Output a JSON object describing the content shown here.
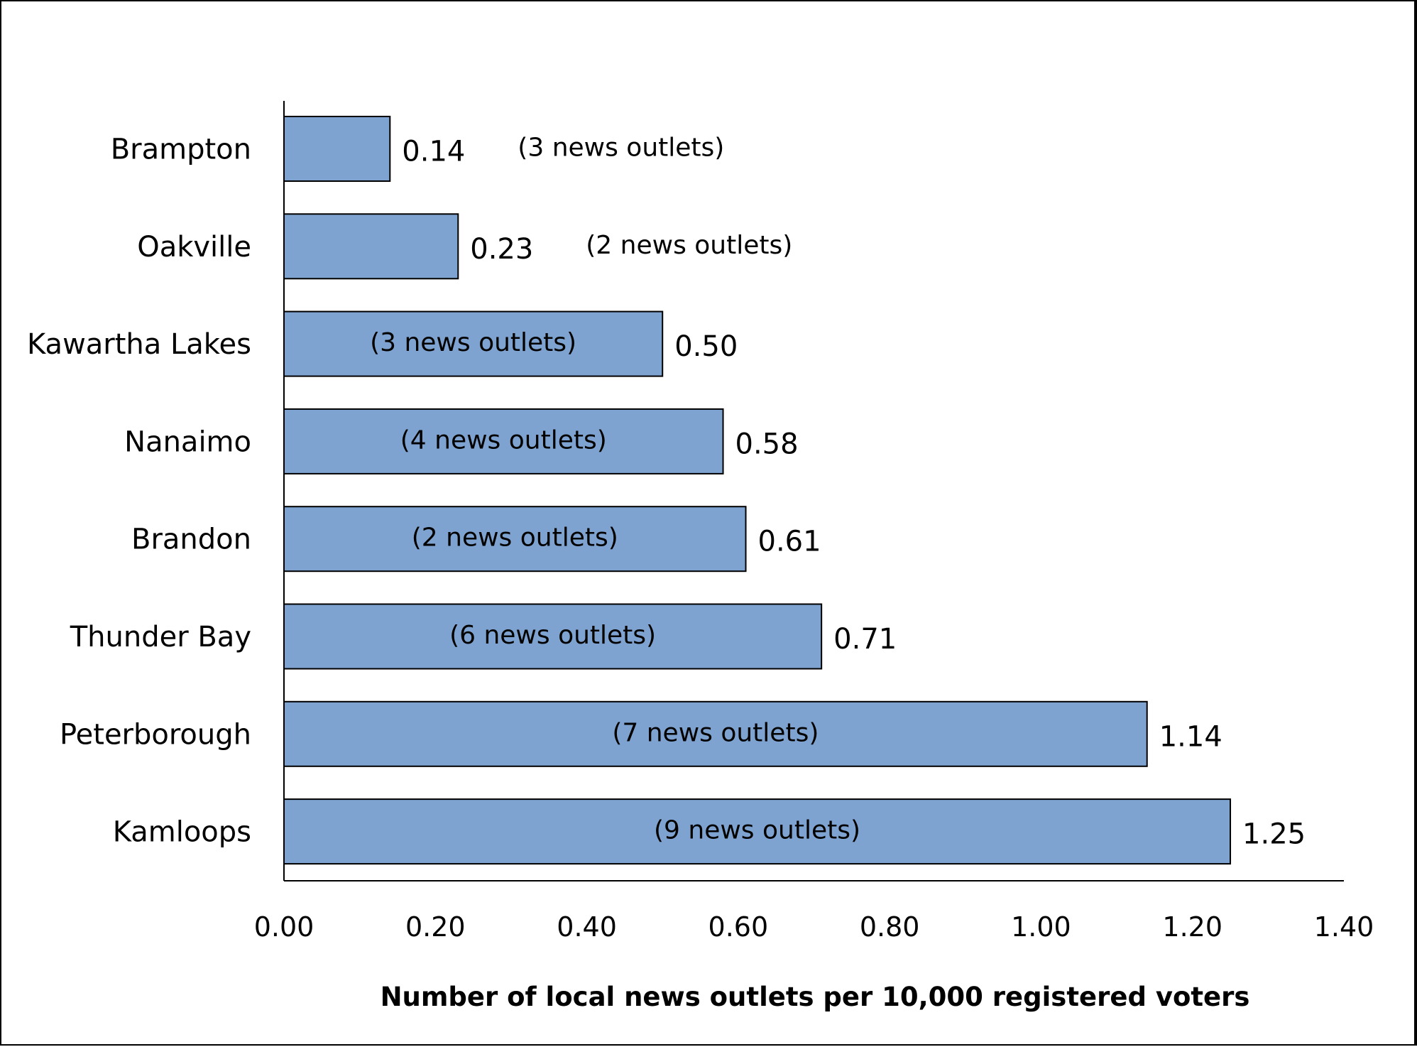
{
  "chart_data": {
    "type": "bar",
    "orientation": "horizontal",
    "title": "",
    "xlabel": "Number of local news outlets per 10,000 registered voters",
    "ylabel": "",
    "xlim": [
      0,
      1.4
    ],
    "xticks": [
      "0.00",
      "0.20",
      "0.40",
      "0.60",
      "0.80",
      "1.00",
      "1.20",
      "1.40"
    ],
    "grid": false,
    "legend": "none",
    "bar_color": "#7EA3D0",
    "bar_edge_color": "#000000",
    "categories": [
      "Brampton",
      "Oakville",
      "Kawartha Lakes",
      "Nanaimo",
      "Brandon",
      "Thunder Bay",
      "Peterborough",
      "Kamloops"
    ],
    "values": [
      0.14,
      0.23,
      0.5,
      0.58,
      0.61,
      0.71,
      1.14,
      1.25
    ],
    "value_labels": [
      "0.14",
      "0.23",
      "0.50",
      "0.58",
      "0.61",
      "0.71",
      "1.14",
      "1.25"
    ],
    "annotations": [
      "(3 news outlets)",
      "(2 news outlets)",
      "(3 news outlets)",
      "(4 news outlets)",
      "(2 news outlets)",
      "(6 news outlets)",
      "(7 news outlets)",
      "(9 news outlets)"
    ]
  }
}
